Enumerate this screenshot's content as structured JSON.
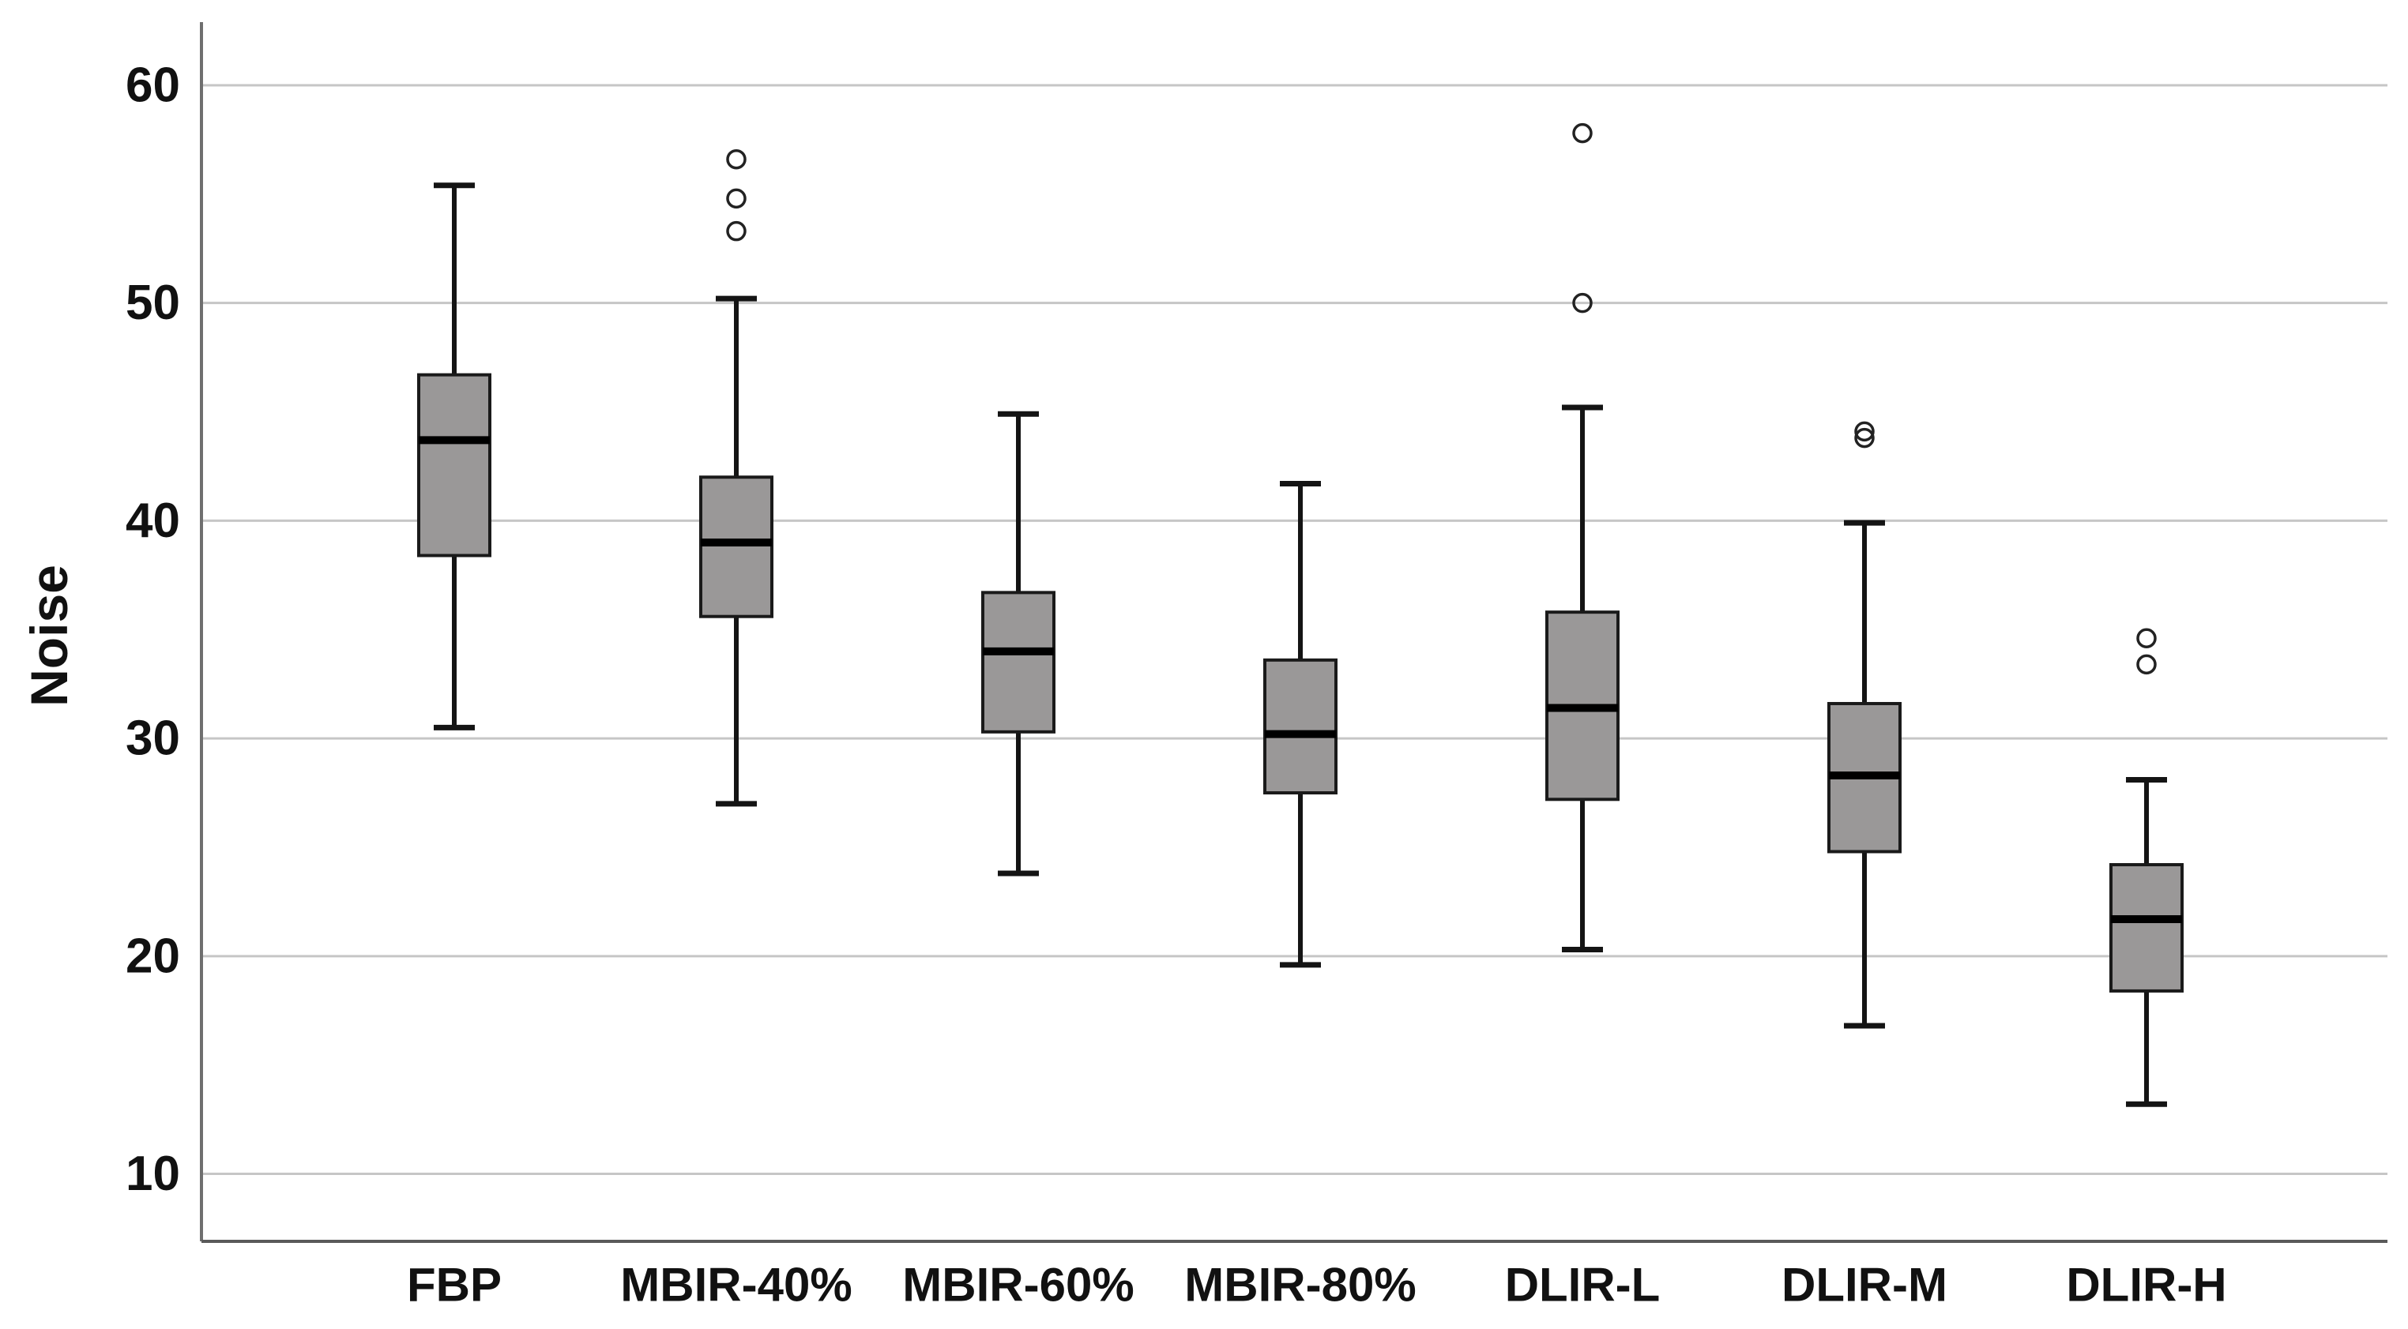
{
  "chart_data": {
    "type": "boxplot",
    "title": "",
    "xlabel": "",
    "ylabel": "Noise",
    "ylim": [
      6.9,
      62.9
    ],
    "yticks": [
      10,
      20,
      30,
      40,
      50,
      60
    ],
    "grid": "horizontal",
    "legend": "none",
    "categories": [
      "FBP",
      "MBIR-40%",
      "MBIR-60%",
      "MBIR-80%",
      "DLIR-L",
      "DLIR-M",
      "DLIR-H"
    ],
    "series": [
      {
        "category": "FBP",
        "whisker_low": 30.5,
        "q1": 38.4,
        "median": 43.7,
        "q3": 46.7,
        "whisker_high": 55.4,
        "outliers": []
      },
      {
        "category": "MBIR-40%",
        "whisker_low": 27.0,
        "q1": 35.6,
        "median": 39.0,
        "q3": 42.0,
        "whisker_high": 50.2,
        "outliers": [
          53.3,
          54.8,
          56.6
        ]
      },
      {
        "category": "MBIR-60%",
        "whisker_low": 23.8,
        "q1": 30.3,
        "median": 34.0,
        "q3": 36.7,
        "whisker_high": 44.9,
        "outliers": []
      },
      {
        "category": "MBIR-80%",
        "whisker_low": 19.6,
        "q1": 27.5,
        "median": 30.2,
        "q3": 33.6,
        "whisker_high": 41.7,
        "outliers": []
      },
      {
        "category": "DLIR-L",
        "whisker_low": 20.3,
        "q1": 27.2,
        "median": 31.4,
        "q3": 35.8,
        "whisker_high": 45.2,
        "outliers": [
          50.0,
          57.8
        ]
      },
      {
        "category": "DLIR-M",
        "whisker_low": 16.8,
        "q1": 24.8,
        "median": 28.3,
        "q3": 31.6,
        "whisker_high": 39.9,
        "outliers": [
          43.8,
          44.1
        ]
      },
      {
        "category": "DLIR-H",
        "whisker_low": 13.2,
        "q1": 18.4,
        "median": 21.7,
        "q3": 24.2,
        "whisker_high": 28.1,
        "outliers": [
          33.4,
          34.6
        ]
      }
    ],
    "colors": {
      "background": "#ffffff",
      "box_fill": "#9a9898",
      "box_border": "#1a1a1a",
      "median_line": "#000000",
      "whisker_line": "#141414",
      "outlier_stroke": "#222222",
      "gridline": "#c6c6c6",
      "y_axis_line": "#6f6f6f",
      "x_axis_line": "#5a5a5a",
      "text": "#111111"
    }
  }
}
